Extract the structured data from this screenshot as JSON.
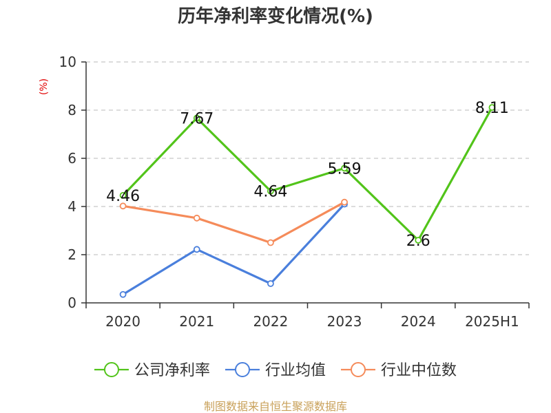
{
  "chart_data": {
    "type": "line",
    "title": "历年净利率变化情况(%)",
    "xlabel": "",
    "ylabel": "(%)",
    "ylim": [
      0,
      10
    ],
    "yticks": [
      "0",
      "2",
      "4",
      "6",
      "8",
      "10"
    ],
    "grid": true,
    "legend_position": "bottom",
    "categories": [
      "2020",
      "2021",
      "2022",
      "2023",
      "2024",
      "2025H1"
    ],
    "series": [
      {
        "name": "公司净利率",
        "color": "#52c41a",
        "values": [
          4.46,
          7.67,
          4.64,
          5.59,
          2.6,
          8.11
        ],
        "labels": [
          "4.46",
          "7.67",
          "4.64",
          "5.59",
          "2.6",
          "8.11"
        ]
      },
      {
        "name": "行业均值",
        "color": "#4a7fdc",
        "values": [
          0.35,
          2.22,
          0.8,
          4.1,
          null,
          null
        ]
      },
      {
        "name": "行业中位数",
        "color": "#f58b5a",
        "values": [
          4.02,
          3.52,
          2.5,
          4.18,
          null,
          null
        ]
      }
    ]
  },
  "source": "制图数据来自恒生聚源数据库",
  "colors": {
    "axis": "#333333",
    "grid": "#c8c8c8",
    "ylabel": "#e00000",
    "source": "#c9a15a"
  }
}
